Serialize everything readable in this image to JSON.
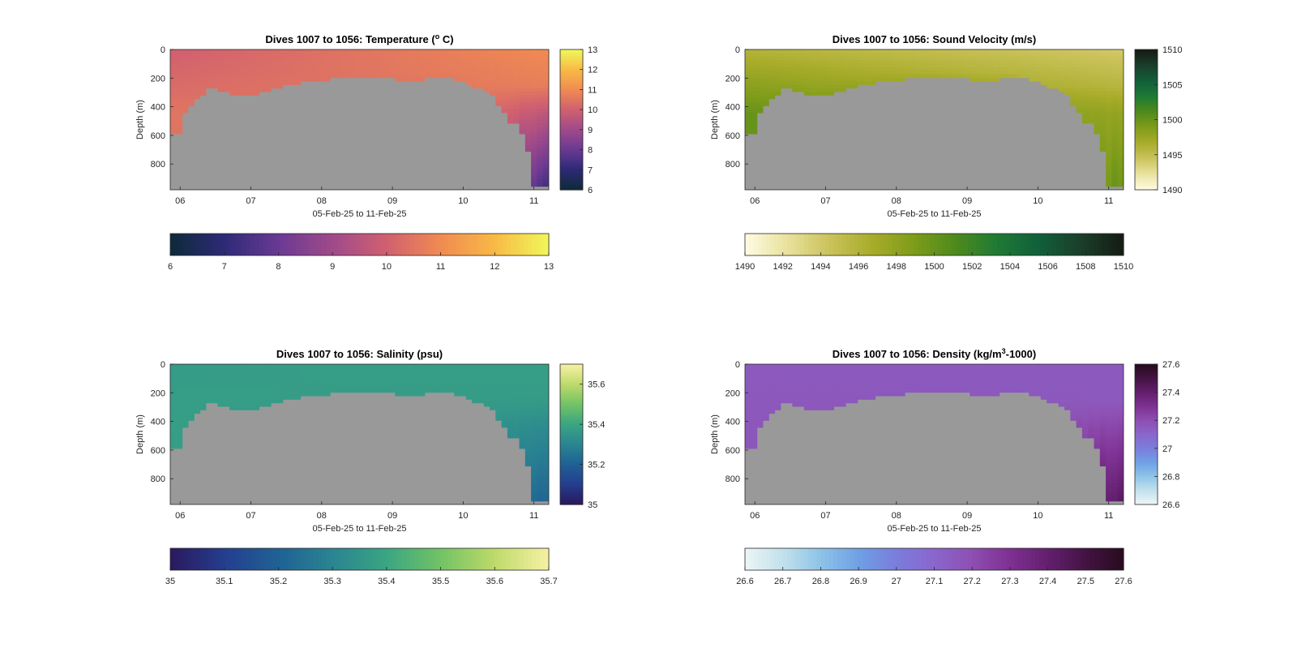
{
  "figure": {
    "background": "#ffffff"
  },
  "style": {
    "land_color": "#999999",
    "axis_color": "#262626"
  },
  "chart_data": [
    {
      "type": "heatmap",
      "title": "Dives 1007 to 1056: Temperature (",
      "title_sup": "o",
      "title_end": " C)",
      "xlabel": "05-Feb-25 to 11-Feb-25",
      "ylabel": "Depth (m)",
      "xticks": [
        "06",
        "07",
        "08",
        "09",
        "10",
        "11"
      ],
      "yticks": [
        0,
        200,
        400,
        600,
        800
      ],
      "ylim": [
        0,
        980
      ],
      "xlim": [
        5.86,
        11.21
      ],
      "seafloor_depth_m": [
        580,
        440,
        400,
        350,
        310,
        280,
        290,
        300,
        310,
        320,
        320,
        310,
        300,
        290,
        270,
        260,
        250,
        240,
        230,
        220,
        215,
        210,
        205,
        200,
        195,
        195,
        195,
        195,
        195,
        200,
        200,
        205,
        210,
        215,
        215,
        210,
        200,
        200,
        200,
        205,
        210,
        225,
        240,
        260,
        290,
        330,
        380,
        440,
        520,
        600,
        700,
        950,
        950,
        950
      ],
      "surface": {
        "top": [
          10,
          11
        ],
        "bottom": [
          10.5,
          10.5
        ]
      },
      "deep": {
        "bottom": [
          10.2,
          7.2
        ],
        "cut": 0.78,
        "jitter": 0.45
      },
      "colorbar": {
        "min": 6,
        "max": 13,
        "ticks": [
          6,
          7,
          8,
          9,
          10,
          11,
          12,
          13
        ],
        "colors": [
          "#0e2a3c",
          "#2f2a78",
          "#6b3a93",
          "#a04a8a",
          "#d06070",
          "#f08a52",
          "#f8b845",
          "#f0f55a"
        ]
      }
    },
    {
      "type": "heatmap",
      "title": "Dives 1007 to 1056: Sound Velocity (m/s)",
      "title_sup": "",
      "title_end": "",
      "xlabel": "05-Feb-25 to 11-Feb-25",
      "ylabel": "Depth (m)",
      "xticks": [
        "06",
        "07",
        "08",
        "09",
        "10",
        "11"
      ],
      "yticks": [
        0,
        200,
        400,
        600,
        800
      ],
      "ylim": [
        0,
        980
      ],
      "xlim": [
        5.86,
        11.21
      ],
      "seafloor_depth_m": [
        580,
        440,
        400,
        350,
        310,
        280,
        290,
        300,
        310,
        320,
        320,
        310,
        300,
        290,
        270,
        260,
        250,
        240,
        230,
        220,
        215,
        210,
        205,
        200,
        195,
        195,
        195,
        195,
        195,
        200,
        200,
        205,
        210,
        215,
        215,
        210,
        200,
        200,
        200,
        205,
        210,
        225,
        240,
        260,
        290,
        330,
        380,
        440,
        520,
        600,
        700,
        950,
        950,
        950
      ],
      "surface": {
        "top": [
          1496,
          1494
        ],
        "bottom": [
          1500,
          1497
        ]
      },
      "deep": {
        "bottom": [
          1500,
          1499.5
        ],
        "cut": 0.72,
        "jitter": 0.9
      },
      "colorbar": {
        "min": 1490,
        "max": 1510,
        "ticks": [
          1490,
          1492,
          1494,
          1496,
          1498,
          1500,
          1502,
          1504,
          1506,
          1508,
          1510
        ],
        "colors": [
          "#fdfae0",
          "#e8e09a",
          "#c9c25a",
          "#a8ac2a",
          "#7e9c1a",
          "#4f8a1c",
          "#1f7a35",
          "#11603a",
          "#1b3f2a",
          "#151d14"
        ]
      }
    },
    {
      "type": "heatmap",
      "title": "Dives 1007 to 1056: Salinity (psu)",
      "title_sup": "",
      "title_end": "",
      "xlabel": "05-Feb-25 to 11-Feb-25",
      "ylabel": "Depth (m)",
      "xticks": [
        "06",
        "07",
        "08",
        "09",
        "10",
        "11"
      ],
      "yticks": [
        0,
        200,
        400,
        600,
        800
      ],
      "ylim": [
        0,
        980
      ],
      "xlim": [
        5.86,
        11.21
      ],
      "seafloor_depth_m": [
        580,
        440,
        400,
        350,
        310,
        280,
        290,
        300,
        310,
        320,
        320,
        310,
        300,
        290,
        270,
        260,
        250,
        240,
        230,
        220,
        215,
        210,
        205,
        200,
        195,
        195,
        195,
        195,
        195,
        200,
        200,
        205,
        210,
        215,
        215,
        210,
        200,
        200,
        200,
        205,
        210,
        225,
        240,
        260,
        290,
        330,
        380,
        440,
        520,
        600,
        700,
        950,
        950,
        950
      ],
      "surface": {
        "top": [
          35.37,
          35.38
        ],
        "bottom": [
          35.38,
          35.36
        ]
      },
      "deep": {
        "bottom": [
          35.36,
          35.2
        ],
        "cut": 0.72,
        "jitter": 0.03
      },
      "colorbar": {
        "min": 35,
        "max": 35.7,
        "ticks": [
          35,
          35.1,
          35.2,
          35.3,
          35.4,
          35.5,
          35.6,
          35.7
        ],
        "colors": [
          "#2a1a60",
          "#243f8f",
          "#1f6294",
          "#2a8591",
          "#3aa583",
          "#71c265",
          "#bcd96a",
          "#f4f0a0"
        ]
      }
    },
    {
      "type": "heatmap",
      "title": "Dives 1007 to 1056: Density (kg/m",
      "title_sup": "3",
      "title_end": "-1000)",
      "xlabel": "05-Feb-25 to 11-Feb-25",
      "ylabel": "Depth (m)",
      "xticks": [
        "06",
        "07",
        "08",
        "09",
        "10",
        "11"
      ],
      "yticks": [
        0,
        200,
        400,
        600,
        800
      ],
      "ylim": [
        0,
        980
      ],
      "xlim": [
        5.86,
        11.21
      ],
      "seafloor_depth_m": [
        580,
        440,
        400,
        350,
        310,
        280,
        290,
        300,
        310,
        320,
        320,
        310,
        300,
        290,
        270,
        260,
        250,
        240,
        230,
        220,
        215,
        210,
        205,
        200,
        195,
        195,
        195,
        195,
        195,
        200,
        200,
        205,
        210,
        215,
        215,
        210,
        200,
        200,
        200,
        205,
        210,
        225,
        240,
        260,
        290,
        330,
        380,
        440,
        520,
        600,
        700,
        950,
        950,
        950
      ],
      "surface": {
        "top": [
          27.15,
          27.15
        ],
        "bottom": [
          27.17,
          27.16
        ]
      },
      "deep": {
        "bottom": [
          27.18,
          27.45
        ],
        "cut": 0.7,
        "jitter": 0.05
      },
      "colorbar": {
        "min": 26.6,
        "max": 27.6,
        "ticks": [
          26.6,
          26.7,
          26.8,
          26.9,
          27,
          27.1,
          27.2,
          27.3,
          27.4,
          27.5,
          27.6
        ],
        "colors": [
          "#eaf4f4",
          "#bfe0ec",
          "#8cc2e8",
          "#6f9fe4",
          "#7b7ddc",
          "#8a66cc",
          "#8e4fb2",
          "#7e3192",
          "#64206f",
          "#451445",
          "#2a0c20"
        ]
      }
    }
  ]
}
